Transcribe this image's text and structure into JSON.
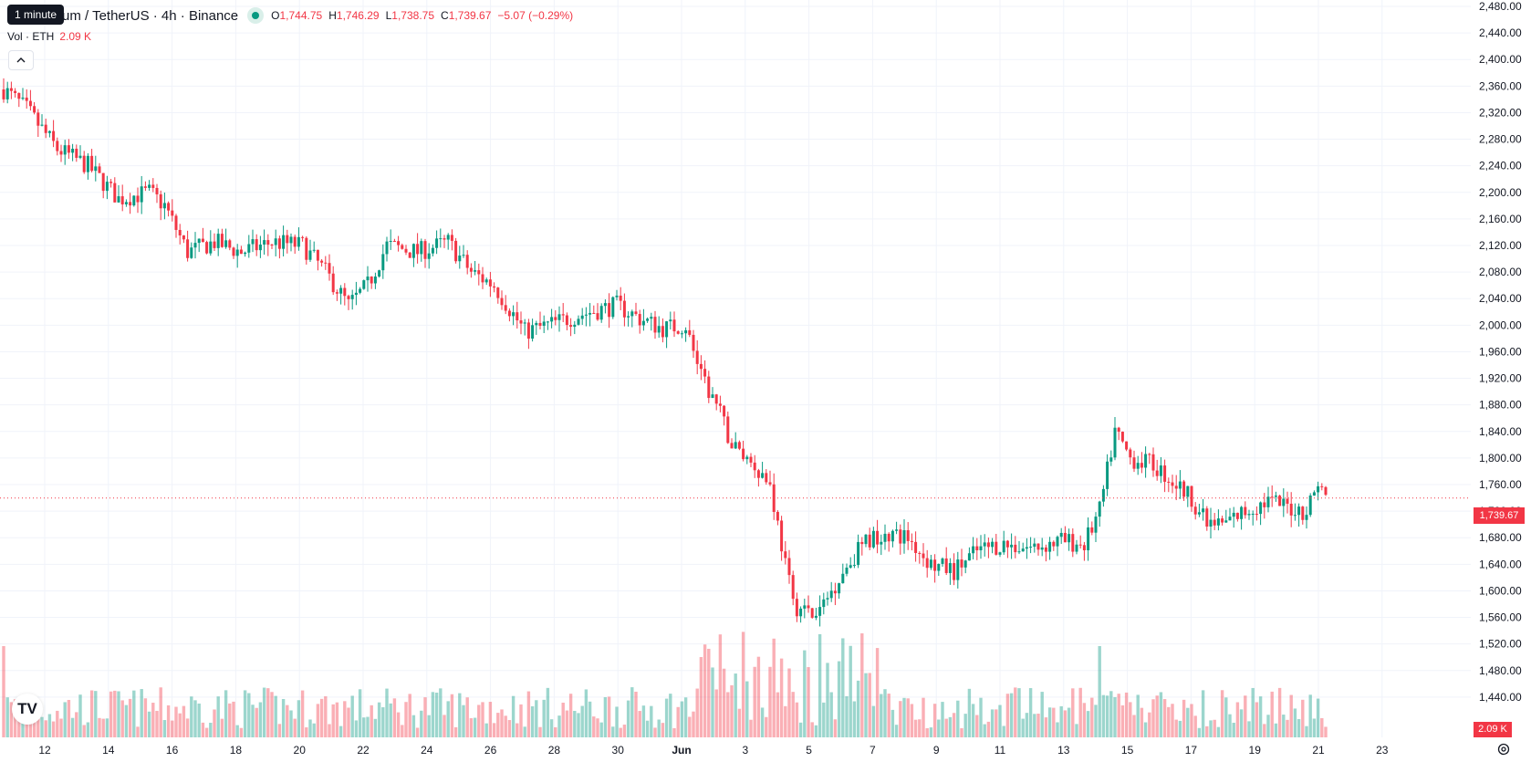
{
  "symbol": {
    "title": "um / TetherUS · 4h · Binance",
    "open_label": "O",
    "open": "1,744.75",
    "high_label": "H",
    "high": "1,746.29",
    "low_label": "L",
    "low": "1,738.75",
    "close_label": "C",
    "close": "1,739.67",
    "change": "−5.07 (−0.29%)"
  },
  "tooltip": "1 minute",
  "volume": {
    "label": "Vol · ETH",
    "value": "2.09 K"
  },
  "last_price_badge": "1,739.67",
  "volume_badge": "2.09 K",
  "logo_text": "TV",
  "colors": {
    "up": "#089981",
    "down": "#f23645",
    "grid": "#f0f3fa"
  },
  "chart_data": {
    "type": "candlestick",
    "ylim": [
      1400,
      2480
    ],
    "yticks": [
      "2,480.00",
      "2,440.00",
      "2,400.00",
      "2,360.00",
      "2,320.00",
      "2,280.00",
      "2,240.00",
      "2,200.00",
      "2,160.00",
      "2,120.00",
      "2,080.00",
      "2,040.00",
      "2,000.00",
      "1,960.00",
      "1,920.00",
      "1,880.00",
      "1,840.00",
      "1,800.00",
      "1,760.00",
      "1,720.00",
      "1,680.00",
      "1,640.00",
      "1,600.00",
      "1,560.00",
      "1,520.00",
      "1,480.00",
      "1,440.00"
    ],
    "xticks": [
      "12",
      "14",
      "16",
      "18",
      "20",
      "22",
      "24",
      "26",
      "28",
      "30",
      "Jun",
      "3",
      "5",
      "7",
      "9",
      "11",
      "13",
      "15",
      "17",
      "19",
      "21",
      "23"
    ],
    "series": [
      {
        "name": "price",
        "keypoints": [
          [
            0,
            2355
          ],
          [
            6,
            2325
          ],
          [
            14,
            2265
          ],
          [
            22,
            2240
          ],
          [
            30,
            2190
          ],
          [
            38,
            2200
          ],
          [
            42,
            2180
          ],
          [
            48,
            2110
          ],
          [
            55,
            2125
          ],
          [
            62,
            2110
          ],
          [
            70,
            2125
          ],
          [
            78,
            2120
          ],
          [
            84,
            2080
          ],
          [
            90,
            2030
          ],
          [
            95,
            2060
          ],
          [
            100,
            2120
          ],
          [
            108,
            2110
          ],
          [
            116,
            2125
          ],
          [
            122,
            2080
          ],
          [
            128,
            2060
          ],
          [
            136,
            1990
          ],
          [
            142,
            2000
          ],
          [
            150,
            2015
          ],
          [
            160,
            2030
          ],
          [
            166,
            2010
          ],
          [
            172,
            1995
          ],
          [
            178,
            2000
          ],
          [
            182,
            1920
          ],
          [
            186,
            1880
          ],
          [
            190,
            1820
          ],
          [
            196,
            1790
          ],
          [
            200,
            1760
          ],
          [
            206,
            1580
          ],
          [
            212,
            1560
          ],
          [
            218,
            1620
          ],
          [
            224,
            1670
          ],
          [
            230,
            1690
          ],
          [
            236,
            1680
          ],
          [
            242,
            1640
          ],
          [
            248,
            1630
          ],
          [
            254,
            1660
          ],
          [
            260,
            1670
          ],
          [
            268,
            1665
          ],
          [
            276,
            1675
          ],
          [
            282,
            1670
          ],
          [
            286,
            1720
          ],
          [
            290,
            1840
          ],
          [
            294,
            1800
          ],
          [
            300,
            1790
          ],
          [
            306,
            1760
          ],
          [
            310,
            1740
          ],
          [
            314,
            1700
          ],
          [
            318,
            1700
          ],
          [
            324,
            1720
          ],
          [
            330,
            1735
          ],
          [
            336,
            1725
          ],
          [
            340,
            1720
          ],
          [
            343,
            1765
          ],
          [
            345,
            1740
          ]
        ]
      },
      {
        "name": "volume",
        "range": [
          0,
          4000
        ]
      }
    ]
  }
}
